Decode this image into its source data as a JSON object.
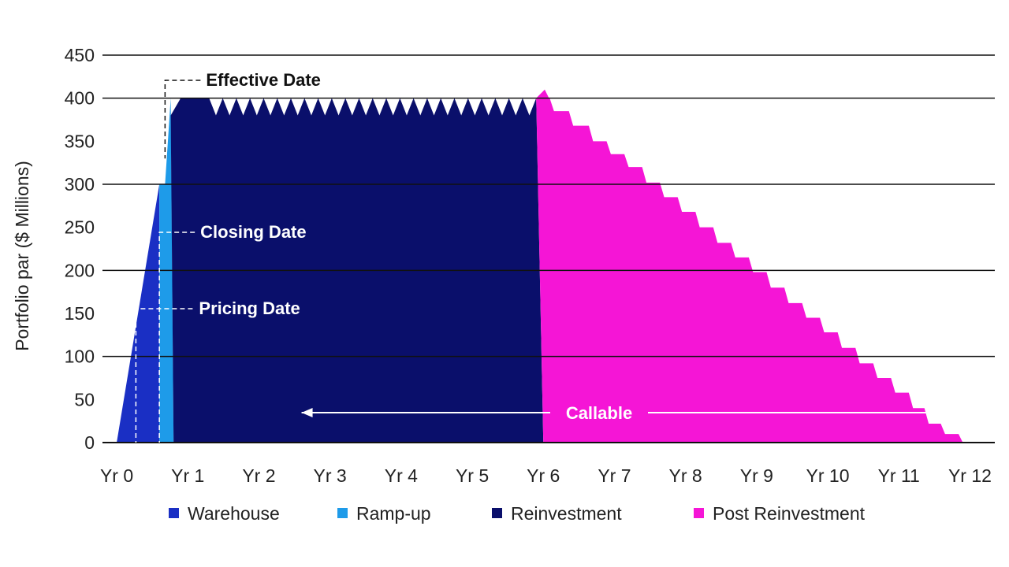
{
  "chart_data": {
    "type": "area",
    "ylabel": "Portfolio par ($ Millions)",
    "xlabel": "",
    "ylim": [
      0,
      450
    ],
    "xlim": [
      -0.2,
      12.35
    ],
    "y_ticks": [
      0,
      50,
      100,
      150,
      200,
      250,
      300,
      350,
      400,
      450
    ],
    "gridlines_at": [
      0,
      100,
      200,
      300,
      400,
      450
    ],
    "x_ticks": [
      {
        "x": 0,
        "label": "Yr 0"
      },
      {
        "x": 1,
        "label": "Yr 1"
      },
      {
        "x": 2,
        "label": "Yr 2"
      },
      {
        "x": 3,
        "label": "Yr 3"
      },
      {
        "x": 4,
        "label": "Yr 4"
      },
      {
        "x": 5,
        "label": "Yr 5"
      },
      {
        "x": 6,
        "label": "Yr 6"
      },
      {
        "x": 7,
        "label": "Yr 7"
      },
      {
        "x": 8,
        "label": "Yr 8"
      },
      {
        "x": 9,
        "label": "Yr 9"
      },
      {
        "x": 10,
        "label": "Yr 10"
      },
      {
        "x": 11,
        "label": "Yr 11"
      },
      {
        "x": 12,
        "label": "Yr 12"
      }
    ],
    "grid": true,
    "legend_position": "bottom",
    "series": [
      {
        "name": "Warehouse",
        "color": "#1a2fc4",
        "points": [
          [
            0.0,
            0
          ],
          [
            0.6,
            300
          ],
          [
            0.6,
            0
          ]
        ]
      },
      {
        "name": "Ramp-up",
        "color": "#1e9be9",
        "points": [
          [
            0.6,
            0
          ],
          [
            0.6,
            300
          ],
          [
            0.68,
            300
          ],
          [
            0.76,
            400
          ],
          [
            0.8,
            0
          ]
        ]
      },
      {
        "name": "Reinvestment",
        "color": "#0a0f6b",
        "sawtooth": {
          "x_start": 1.3,
          "x_end": 5.9,
          "teeth": 24,
          "low": 380,
          "high": 400
        },
        "points": [
          [
            0.8,
            0
          ],
          [
            0.76,
            380
          ],
          [
            0.9,
            400
          ],
          [
            1.3,
            400
          ],
          [
            5.9,
            400
          ],
          [
            6.0,
            0
          ]
        ]
      },
      {
        "name": "Post Reinvestment",
        "color": "#f515d6",
        "steps": [
          [
            5.9,
            400
          ],
          [
            6.15,
            385
          ],
          [
            6.42,
            368
          ],
          [
            6.7,
            350
          ],
          [
            6.95,
            335
          ],
          [
            7.2,
            320
          ],
          [
            7.45,
            302
          ],
          [
            7.7,
            285
          ],
          [
            7.95,
            268
          ],
          [
            8.2,
            250
          ],
          [
            8.45,
            232
          ],
          [
            8.7,
            215
          ],
          [
            8.95,
            198
          ],
          [
            9.2,
            180
          ],
          [
            9.45,
            162
          ],
          [
            9.7,
            145
          ],
          [
            9.95,
            128
          ],
          [
            10.2,
            110
          ],
          [
            10.45,
            92
          ],
          [
            10.7,
            75
          ],
          [
            10.95,
            58
          ],
          [
            11.2,
            40
          ],
          [
            11.42,
            22
          ],
          [
            11.65,
            10
          ],
          [
            11.9,
            0
          ]
        ]
      }
    ],
    "annotations": [
      {
        "label": "Effective Date",
        "x": 0.76,
        "y": 420,
        "color": "#111111"
      },
      {
        "label": "Closing Date",
        "x": 0.68,
        "y": 245,
        "color": "#ffffff"
      },
      {
        "label": "Pricing Date",
        "x": 0.35,
        "y": 155,
        "color": "#ffffff"
      },
      {
        "label": "Callable",
        "x_from": 2.6,
        "x_to": 11.6,
        "y": 35,
        "color": "#ffffff"
      }
    ]
  }
}
